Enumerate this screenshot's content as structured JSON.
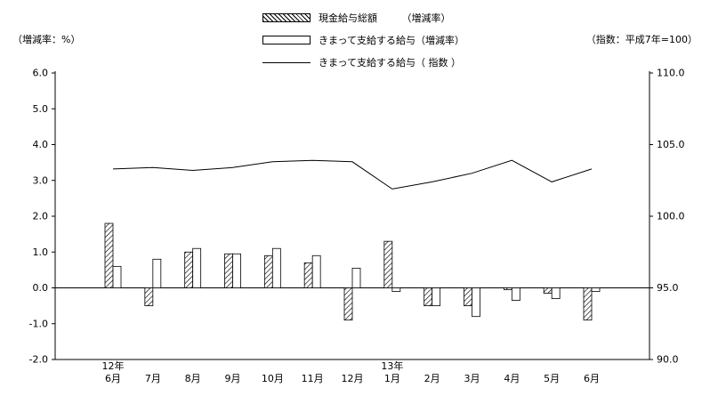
{
  "labels": {
    "left_axis_title": "（増減率：%）",
    "right_axis_title": "（指数：平成7年=100）"
  },
  "legend": [
    {
      "label": "現金給与総額　　　（増減率）",
      "marker": "hatched-bar"
    },
    {
      "label": "きまって支給する給与（増減率）",
      "marker": "open-bar"
    },
    {
      "label": "きまって支給する給与（ 指数 ）",
      "marker": "line"
    }
  ],
  "chart_data": {
    "type": "bar+line",
    "categories": [
      "6月",
      "7月",
      "8月",
      "9月",
      "10月",
      "11月",
      "12月",
      "1月",
      "2月",
      "3月",
      "4月",
      "5月",
      "6月"
    ],
    "year_markers": [
      {
        "index": 0,
        "label": "12年"
      },
      {
        "index": 7,
        "label": "13年"
      }
    ],
    "left_axis": {
      "min": -2.0,
      "max": 6.0,
      "step": 1.0,
      "unit": "%"
    },
    "right_axis": {
      "min": 90.0,
      "max": 110.0,
      "step": 5.0,
      "unit": "指数（平成7年=100）"
    },
    "series": [
      {
        "name": "現金給与総額（増減率）",
        "type": "bar",
        "style": "hatched",
        "axis": "left",
        "values": [
          1.8,
          -0.5,
          1.0,
          0.95,
          0.9,
          0.7,
          -0.9,
          1.3,
          -0.5,
          -0.5,
          -0.05,
          -0.15,
          -0.9
        ]
      },
      {
        "name": "きまって支給する給与（増減率）",
        "type": "bar",
        "style": "open",
        "axis": "left",
        "values": [
          0.6,
          0.8,
          1.1,
          0.95,
          1.1,
          0.9,
          0.55,
          -0.1,
          -0.5,
          -0.8,
          -0.35,
          -0.3,
          -0.1
        ]
      },
      {
        "name": "きまって支給する給与（指数）",
        "type": "line",
        "axis": "right",
        "values": [
          103.3,
          103.4,
          103.2,
          103.4,
          103.8,
          103.9,
          103.8,
          101.9,
          102.4,
          103.0,
          103.9,
          102.4,
          103.3
        ]
      }
    ],
    "grid": "off",
    "legend_position": "top-center",
    "zero_line": true
  }
}
